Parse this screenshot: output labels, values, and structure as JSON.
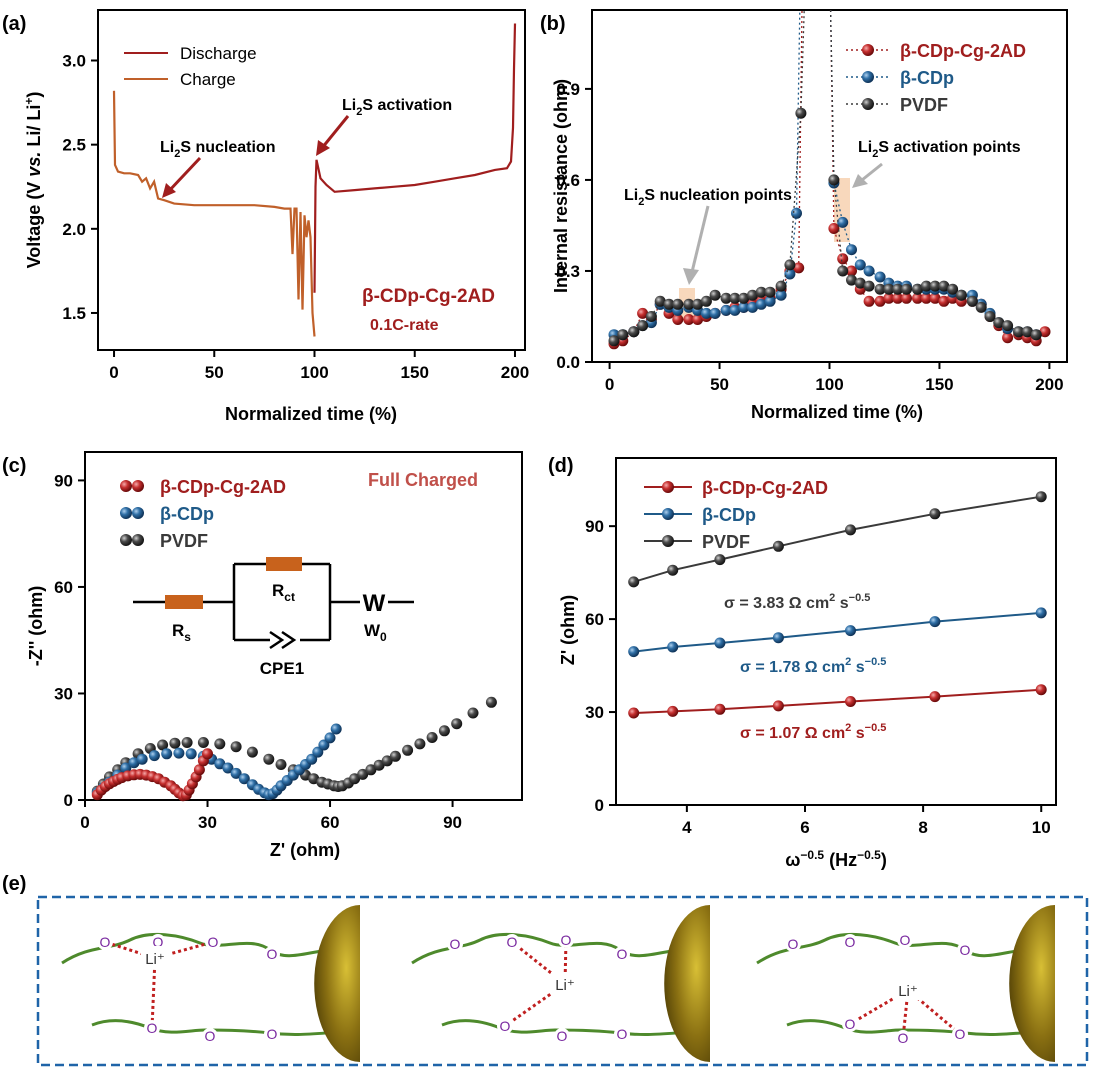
{
  "panel_labels": [
    "(a)",
    "(b)",
    "(c)",
    "(d)",
    "(e)"
  ],
  "colors": {
    "red": "#a01e1e",
    "blue": "#1f5a88",
    "dark": "#3a3a3a",
    "orange": "#c0602a",
    "green": "#4e8a2c",
    "purple": "#7a2aa0",
    "gold": "#7a6510"
  },
  "panel_e": {
    "o_label": "O",
    "li_label": "Li⁺"
  },
  "chart_data": [
    {
      "id": "a",
      "type": "line",
      "xlabel": "Normalized time (%)",
      "ylabel_parts": [
        "Voltage (V ",
        "vs.",
        " Li/ Li",
        "+",
        ")"
      ],
      "xlim": [
        -8,
        205
      ],
      "ylim": [
        1.28,
        3.3
      ],
      "xticks": [
        0,
        50,
        100,
        150,
        200
      ],
      "yticks": [
        1.5,
        2.0,
        2.5,
        3.0
      ],
      "ytick_labels": [
        "1.5",
        "2.0",
        "2.5",
        "3.0"
      ],
      "legend": [
        "Discharge",
        "Charge"
      ],
      "sample_label": "β-CDp-Cg-2AD",
      "rate_label": "0.1C-rate",
      "annotations": [
        {
          "parts": [
            "Li",
            "2",
            "S nucleation"
          ]
        },
        {
          "parts": [
            "Li",
            "2",
            "S activation"
          ]
        }
      ],
      "series": [
        {
          "name": "Discharge",
          "x": [
            0,
            0.5,
            2,
            5,
            8,
            12,
            14,
            16,
            18,
            20,
            22,
            25,
            30,
            40,
            50,
            60,
            70,
            80,
            85,
            88,
            89,
            90,
            91,
            92,
            93,
            94,
            95,
            96,
            97,
            98,
            99,
            100
          ],
          "y": [
            2.82,
            2.38,
            2.34,
            2.33,
            2.33,
            2.32,
            2.28,
            2.3,
            2.24,
            2.28,
            2.18,
            2.17,
            2.15,
            2.14,
            2.14,
            2.14,
            2.14,
            2.13,
            2.12,
            2.12,
            1.85,
            2.12,
            2.12,
            1.58,
            2.1,
            1.52,
            2.08,
            1.95,
            2.05,
            1.95,
            1.5,
            1.36
          ]
        },
        {
          "name": "Charge",
          "x": [
            100,
            100.5,
            101,
            103,
            106,
            110,
            120,
            130,
            140,
            150,
            160,
            170,
            180,
            190,
            196,
            198,
            199,
            199.5,
            200
          ],
          "y": [
            1.62,
            2.25,
            2.41,
            2.3,
            2.26,
            2.22,
            2.23,
            2.24,
            2.25,
            2.26,
            2.28,
            2.3,
            2.32,
            2.35,
            2.36,
            2.4,
            2.6,
            2.95,
            3.22
          ]
        }
      ]
    },
    {
      "id": "b",
      "type": "scatter",
      "xlabel": "Normalized time (%)",
      "ylabel": "Internal resistance (ohm)",
      "xlim": [
        -8,
        208
      ],
      "ylim": [
        0,
        1.16
      ],
      "xticks": [
        0,
        50,
        100,
        150,
        200
      ],
      "yticks": [
        0,
        0.3,
        0.6,
        0.9
      ],
      "ytick_labels": [
        "0.0",
        "0.3",
        "0.6",
        "0.9"
      ],
      "annotations": [
        {
          "parts": [
            "Li",
            "2",
            "S nucleation points"
          ]
        },
        {
          "parts": [
            "Li",
            "2",
            "S activation points"
          ]
        }
      ],
      "series": [
        {
          "name": "β-CDp-Cg-2AD",
          "x": [
            2,
            6,
            11,
            15,
            19,
            23,
            27,
            31,
            36,
            40,
            44,
            48,
            53,
            57,
            61,
            65,
            69,
            73,
            78,
            82,
            86,
            102,
            106,
            110,
            114,
            118,
            123,
            127,
            131,
            135,
            140,
            144,
            148,
            152,
            156,
            160,
            165,
            169,
            173,
            177,
            181,
            186,
            190,
            194,
            198
          ],
          "y": [
            0.06,
            0.07,
            0.1,
            0.16,
            0.14,
            0.19,
            0.16,
            0.14,
            0.14,
            0.14,
            0.15,
            0.16,
            0.17,
            0.18,
            0.18,
            0.19,
            0.2,
            0.21,
            0.24,
            0.3,
            0.31,
            0.44,
            0.34,
            0.3,
            0.24,
            0.2,
            0.2,
            0.21,
            0.21,
            0.21,
            0.21,
            0.21,
            0.21,
            0.2,
            0.21,
            0.2,
            0.2,
            0.19,
            0.15,
            0.12,
            0.08,
            0.09,
            0.08,
            0.07,
            0.1
          ]
        },
        {
          "name": "β-CDp",
          "x": [
            2,
            6,
            11,
            15,
            19,
            23,
            27,
            31,
            36,
            40,
            44,
            48,
            53,
            57,
            61,
            65,
            69,
            73,
            78,
            82,
            85,
            102,
            106,
            110,
            114,
            118,
            123,
            127,
            131,
            135,
            140,
            144,
            148,
            152,
            156,
            160,
            165,
            169,
            173,
            177,
            181,
            186,
            190,
            194
          ],
          "y": [
            0.09,
            0.09,
            0.1,
            0.12,
            0.13,
            0.19,
            0.18,
            0.17,
            0.18,
            0.17,
            0.16,
            0.16,
            0.17,
            0.17,
            0.18,
            0.18,
            0.19,
            0.2,
            0.22,
            0.29,
            0.49,
            0.59,
            0.46,
            0.37,
            0.32,
            0.3,
            0.28,
            0.26,
            0.25,
            0.25,
            0.24,
            0.24,
            0.24,
            0.24,
            0.23,
            0.22,
            0.22,
            0.19,
            0.16,
            0.13,
            0.11,
            0.1,
            0.1,
            0.09
          ]
        },
        {
          "name": "PVDF",
          "x": [
            2,
            6,
            11,
            15,
            19,
            23,
            27,
            31,
            36,
            40,
            44,
            48,
            53,
            57,
            61,
            65,
            69,
            73,
            78,
            82,
            87,
            102,
            106,
            110,
            114,
            118,
            123,
            127,
            131,
            135,
            140,
            144,
            148,
            152,
            156,
            160,
            165,
            169,
            173,
            177,
            181,
            186,
            190,
            194
          ],
          "y": [
            0.07,
            0.09,
            0.1,
            0.12,
            0.15,
            0.2,
            0.19,
            0.19,
            0.19,
            0.19,
            0.2,
            0.22,
            0.21,
            0.21,
            0.21,
            0.22,
            0.23,
            0.23,
            0.25,
            0.32,
            0.82,
            0.6,
            0.3,
            0.27,
            0.26,
            0.25,
            0.24,
            0.24,
            0.24,
            0.24,
            0.24,
            0.25,
            0.25,
            0.25,
            0.24,
            0.22,
            0.2,
            0.18,
            0.15,
            0.13,
            0.12,
            0.1,
            0.1,
            0.09
          ]
        }
      ]
    },
    {
      "id": "c",
      "type": "scatter",
      "xlabel": "Z' (ohm)",
      "ylabel": "-Z'' (ohm)",
      "xlim": [
        0,
        107
      ],
      "ylim": [
        0,
        98
      ],
      "xticks": [
        0,
        30,
        60,
        90
      ],
      "yticks": [
        0,
        30,
        60,
        90
      ],
      "state_label": "Full Charged",
      "circuit": {
        "labels": {
          "rs": "R",
          "rs_sub": "s",
          "rct": "R",
          "rct_sub": "ct",
          "w": "W",
          "w0": "W",
          "w0_sub": "0",
          "cpe": "CPE1"
        }
      },
      "series": [
        {
          "name": "β-CDp-Cg-2AD",
          "x": [
            3,
            4,
            5,
            6,
            7,
            8,
            9,
            10.5,
            12,
            13.5,
            15,
            16.5,
            18,
            19.5,
            21,
            22,
            23,
            24,
            24.8,
            25.5,
            26.3,
            27.2,
            28,
            29,
            30
          ],
          "y": [
            1.5,
            2.8,
            3.8,
            4.6,
            5.2,
            5.8,
            6.3,
            6.8,
            7.1,
            7.2,
            7,
            6.6,
            6,
            5,
            4,
            3,
            2,
            1.2,
            1.4,
            2.8,
            4.6,
            6.5,
            8.5,
            11,
            13
          ]
        },
        {
          "name": "β-CDp",
          "x": [
            3,
            4.5,
            6,
            8,
            10,
            12,
            14,
            17,
            20,
            23,
            26,
            29,
            31,
            33,
            35,
            37,
            39,
            41,
            42.5,
            44,
            45,
            46,
            47,
            48,
            49.5,
            51,
            52.5,
            54,
            55.5,
            57,
            58.5,
            60,
            61.5
          ],
          "y": [
            2,
            3.5,
            5,
            7,
            9,
            10.5,
            11.5,
            12.5,
            13,
            13.2,
            13,
            12.3,
            11.5,
            10.2,
            9,
            7.5,
            6,
            4.3,
            3,
            2,
            1.5,
            1.8,
            2.8,
            4,
            5.5,
            7,
            8.5,
            10,
            11.5,
            13.5,
            15.5,
            17.5,
            20
          ]
        },
        {
          "name": "PVDF",
          "x": [
            3,
            4.5,
            6,
            8,
            10,
            13,
            16,
            19,
            22,
            25,
            29,
            33,
            37,
            41,
            45,
            48,
            51,
            54,
            56,
            58,
            59.5,
            61,
            62,
            63,
            64.5,
            66,
            68,
            70,
            72,
            74,
            76,
            79,
            82,
            85,
            88,
            91,
            95,
            99.5
          ],
          "y": [
            2.5,
            4.5,
            6.5,
            8.5,
            10.5,
            13,
            14.5,
            15.5,
            16,
            16.2,
            16.2,
            15.8,
            15,
            13.5,
            11.5,
            10,
            8.5,
            7,
            6,
            5,
            4.5,
            4,
            3.8,
            4,
            4.8,
            6,
            7.2,
            8.5,
            9.8,
            11,
            12.3,
            14,
            15.8,
            17.6,
            19.5,
            21.5,
            24.5,
            27.5
          ]
        }
      ]
    },
    {
      "id": "d",
      "type": "line",
      "xlabel_parts": [
        "ω",
        "−0.5",
        " (Hz",
        "−0.5",
        ")"
      ],
      "ylabel": "Z' (ohm)",
      "xlim": [
        2.8,
        10.25
      ],
      "ylim": [
        0,
        112
      ],
      "xticks": [
        4,
        6,
        8,
        10
      ],
      "yticks": [
        0,
        30,
        60,
        90
      ],
      "series": [
        {
          "name": "β-CDp-Cg-2AD",
          "x": [
            3.1,
            3.76,
            4.56,
            5.55,
            6.77,
            8.2,
            10
          ],
          "y": [
            29.7,
            30.2,
            30.9,
            32,
            33.4,
            35,
            37.2
          ],
          "sigma_parts": [
            "σ = 1.07 Ω cm",
            "2",
            " s",
            "−0.5"
          ]
        },
        {
          "name": "β-CDp",
          "x": [
            3.1,
            3.76,
            4.56,
            5.55,
            6.77,
            8.2,
            10
          ],
          "y": [
            49.5,
            51,
            52.3,
            54,
            56.3,
            59.2,
            62
          ],
          "sigma_parts": [
            "σ = 1.78 Ω cm",
            "2",
            " s",
            "−0.5"
          ]
        },
        {
          "name": "PVDF",
          "x": [
            3.1,
            3.76,
            4.56,
            5.55,
            6.77,
            8.2,
            10
          ],
          "y": [
            72,
            75.8,
            79.2,
            83.5,
            88.8,
            94,
            99.5
          ],
          "sigma_parts": [
            "σ = 3.83 Ω cm",
            "2",
            " s",
            "−0.5"
          ]
        }
      ]
    }
  ]
}
